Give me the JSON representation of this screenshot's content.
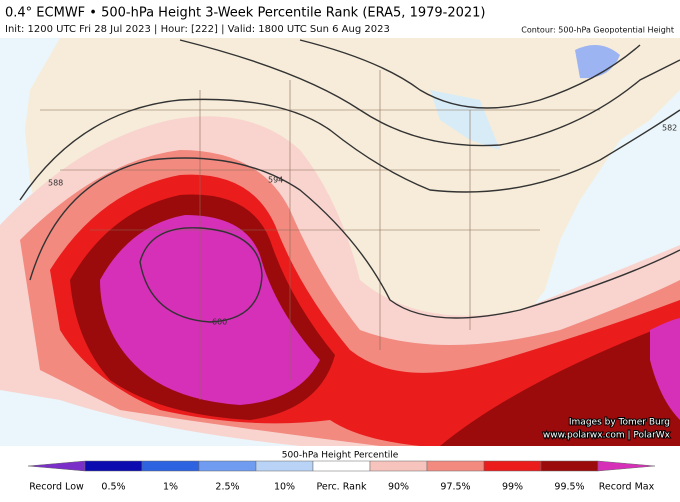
{
  "header": {
    "title": "0.4° ECMWF • 500-hPa Height 3-Week Percentile Rank (ERA5, 1979-2021)",
    "subtitle": "Init: 1200 UTC Fri 28 Jul 2023 | Hour: [222] | Valid: 1800 UTC Sun 6 Aug 2023",
    "contour_note": "Contour: 500-hPa Geopotential Height"
  },
  "map": {
    "contour_labels": [
      "588",
      "594",
      "600",
      "582"
    ],
    "credit": [
      "Images by Tomer Burg",
      "www.polarwx.com | PolarWx"
    ]
  },
  "colorbar": {
    "title": "500-hPa Height Percentile",
    "labels": [
      "Record Low",
      "0.5%",
      "1%",
      "2.5%",
      "10%",
      "Perc. Rank",
      "90%",
      "97.5%",
      "99%",
      "99.5%",
      "Record Max"
    ],
    "colors": [
      "#7b2fc9",
      "#0b0bb0",
      "#2d62e0",
      "#6f9cf0",
      "#b9d3f7",
      "#ffffff",
      "#f7c3bd",
      "#f28a80",
      "#ea1c1c",
      "#9b0b0b",
      "#d62fb8"
    ]
  }
}
